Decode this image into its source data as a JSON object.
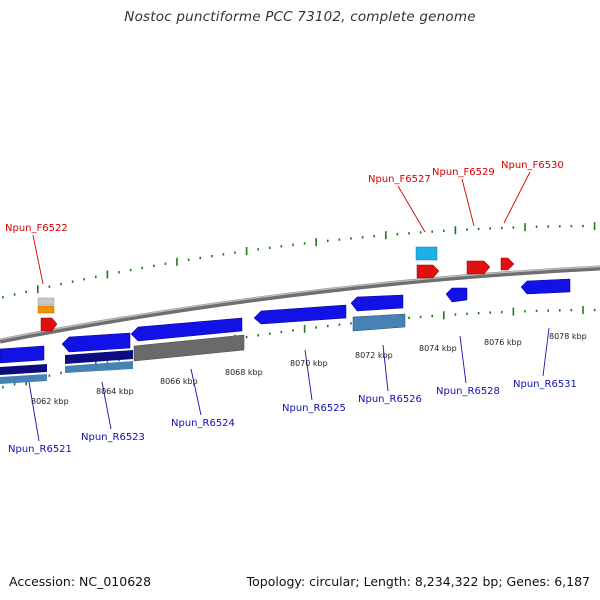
{
  "title": "Nostoc punctiforme PCC 73102, complete genome",
  "footer": {
    "accession": "Accession: NC_010628",
    "summary": "Topology: circular; Length: 8,234,322 bp; Genes: 6,187"
  },
  "colors": {
    "forward_label": "#d40000",
    "reverse_label": "#1010b0",
    "backbone": "#888888",
    "ticks": "#1a7a1a"
  },
  "ruler": [
    {
      "label": "8062 kbp"
    },
    {
      "label": "8064 kbp"
    },
    {
      "label": "8066 kbp"
    },
    {
      "label": "8068 kbp"
    },
    {
      "label": "8070 kbp"
    },
    {
      "label": "8072 kbp"
    },
    {
      "label": "8074 kbp"
    },
    {
      "label": "8076 kbp"
    },
    {
      "label": "8078 kbp"
    }
  ],
  "forward_genes": [
    {
      "name": "Npun_F6522"
    },
    {
      "name": "Npun_F6527"
    },
    {
      "name": "Npun_F6529"
    },
    {
      "name": "Npun_F6530"
    }
  ],
  "reverse_genes": [
    {
      "name": "Npun_R6521"
    },
    {
      "name": "Npun_R6523"
    },
    {
      "name": "Npun_R6524"
    },
    {
      "name": "Npun_R6525"
    },
    {
      "name": "Npun_R6526"
    },
    {
      "name": "Npun_R6528"
    },
    {
      "name": "Npun_R6531"
    }
  ]
}
